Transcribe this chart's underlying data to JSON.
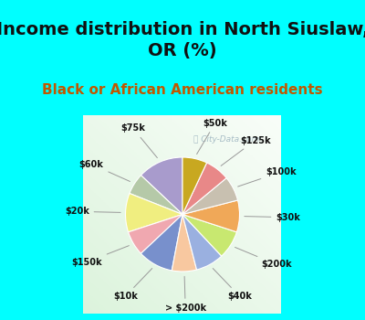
{
  "title": "Income distribution in North Siuslaw,\nOR (%)",
  "subtitle": "Black or African American residents",
  "watermark": "ⓘ City-Data.com",
  "bg_cyan": "#00ffff",
  "bg_chart_color": "#d0ede0",
  "labels": [
    "$75k",
    "$60k",
    "$20k",
    "$150k",
    "$10k",
    "> $200k",
    "$40k",
    "$200k",
    "$30k",
    "$100k",
    "$125k",
    "$50k"
  ],
  "values": [
    13,
    6,
    11,
    7,
    10,
    7,
    8,
    8,
    9,
    7,
    7,
    7
  ],
  "colors": [
    "#a89bcc",
    "#b5c9a8",
    "#f0ee80",
    "#f0a8b0",
    "#7890cc",
    "#f8c8a0",
    "#9ab0e0",
    "#c8e870",
    "#f0a858",
    "#c8c0b0",
    "#e88888",
    "#c8a820"
  ],
  "title_fontsize": 14,
  "subtitle_fontsize": 11,
  "title_color": "#111111",
  "subtitle_color": "#c05800"
}
